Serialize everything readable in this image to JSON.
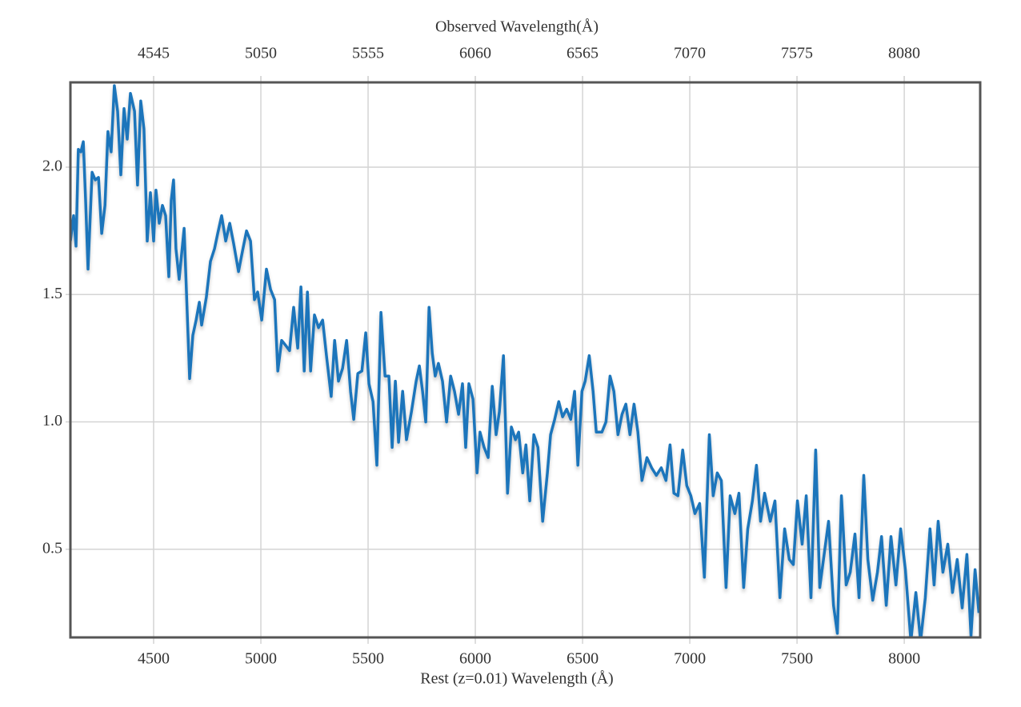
{
  "chart_data": {
    "type": "line",
    "x_label": "Rest (z=0.01) Wavelength (Å)",
    "x2_label": "Observed Wavelength(Å)",
    "xlim": [
      4112,
      8354
    ],
    "xticks": [
      4500,
      5000,
      5500,
      6000,
      6500,
      7000,
      7500,
      8000
    ],
    "x2lim": [
      4153,
      8438
    ],
    "x2ticks": [
      4545,
      5050,
      5555,
      6060,
      6565,
      7070,
      7575,
      8080
    ],
    "ylim": [
      0.154,
      2.333
    ],
    "yticks": [
      0.5,
      {
        "value": 1.0,
        "label": "1.0"
      },
      1.5,
      {
        "value": 2.0,
        "label": "2.0"
      }
    ],
    "grid": true,
    "x": [
      4112,
      4127,
      4138,
      4149,
      4161,
      4172,
      4183,
      4194,
      4213,
      4228,
      4243,
      4258,
      4273,
      4287,
      4302,
      4317,
      4332,
      4347,
      4362,
      4377,
      4392,
      4411,
      4425,
      4440,
      4455,
      4470,
      4485,
      4500,
      4511,
      4526,
      4541,
      4556,
      4571,
      4582,
      4593,
      4604,
      4619,
      4642,
      4668,
      4683,
      4698,
      4713,
      4724,
      4746,
      4765,
      4784,
      4799,
      4817,
      4836,
      4855,
      4873,
      4896,
      4914,
      4933,
      4952,
      4970,
      4985,
      5004,
      5026,
      5045,
      5064,
      5079,
      5097,
      5116,
      5134,
      5153,
      5172,
      5187,
      5202,
      5217,
      5232,
      5250,
      5269,
      5288,
      5306,
      5328,
      5344,
      5362,
      5381,
      5400,
      5418,
      5433,
      5452,
      5471,
      5489,
      5504,
      5523,
      5541,
      5560,
      5579,
      5597,
      5612,
      5627,
      5642,
      5661,
      5679,
      5702,
      5724,
      5739,
      5754,
      5769,
      5784,
      5799,
      5813,
      5828,
      5847,
      5866,
      5885,
      5903,
      5922,
      5940,
      5955,
      5970,
      5989,
      6008,
      6022,
      6041,
      6060,
      6079,
      6097,
      6112,
      6131,
      6150,
      6168,
      6187,
      6202,
      6221,
      6236,
      6254,
      6273,
      6292,
      6314,
      6336,
      6351,
      6370,
      6389,
      6407,
      6426,
      6445,
      6463,
      6478,
      6497,
      6512,
      6531,
      6549,
      6564,
      6590,
      6609,
      6628,
      6646,
      6665,
      6684,
      6702,
      6721,
      6740,
      6758,
      6777,
      6800,
      6822,
      6844,
      6867,
      6889,
      6908,
      6926,
      6945,
      6967,
      6986,
      7005,
      7024,
      7046,
      7068,
      7091,
      7109,
      7128,
      7147,
      7169,
      7188,
      7210,
      7229,
      7251,
      7270,
      7292,
      7311,
      7330,
      7349,
      7375,
      7397,
      7420,
      7442,
      7464,
      7483,
      7502,
      7524,
      7543,
      7565,
      7587,
      7606,
      7628,
      7647,
      7670,
      7688,
      7707,
      7729,
      7748,
      7770,
      7789,
      7811,
      7830,
      7853,
      7875,
      7894,
      7916,
      7938,
      7961,
      7983,
      8005,
      8031,
      8054,
      8076,
      8098,
      8120,
      8139,
      8158,
      8180,
      8203,
      8225,
      8247,
      8270,
      8292,
      8311,
      8330,
      8348
    ],
    "series": [
      {
        "color": "#1a75bb",
        "values": [
          1.71,
          1.81,
          1.69,
          2.07,
          2.06,
          2.1,
          1.87,
          1.6,
          1.98,
          1.95,
          1.96,
          1.74,
          1.85,
          2.14,
          2.06,
          2.32,
          2.22,
          1.97,
          2.23,
          2.11,
          2.29,
          2.22,
          1.93,
          2.26,
          2.15,
          1.71,
          1.9,
          1.71,
          1.91,
          1.78,
          1.85,
          1.81,
          1.57,
          1.87,
          1.95,
          1.68,
          1.56,
          1.76,
          1.17,
          1.34,
          1.4,
          1.47,
          1.38,
          1.49,
          1.63,
          1.68,
          1.74,
          1.81,
          1.71,
          1.78,
          1.7,
          1.59,
          1.67,
          1.75,
          1.71,
          1.48,
          1.51,
          1.4,
          1.6,
          1.52,
          1.48,
          1.2,
          1.32,
          1.3,
          1.28,
          1.45,
          1.29,
          1.53,
          1.2,
          1.51,
          1.2,
          1.42,
          1.37,
          1.4,
          1.26,
          1.1,
          1.32,
          1.16,
          1.21,
          1.32,
          1.12,
          1.01,
          1.19,
          1.2,
          1.35,
          1.15,
          1.08,
          0.83,
          1.43,
          1.18,
          1.18,
          0.9,
          1.16,
          0.92,
          1.12,
          0.93,
          1.04,
          1.16,
          1.22,
          1.12,
          1.0,
          1.45,
          1.27,
          1.18,
          1.23,
          1.16,
          1.0,
          1.18,
          1.12,
          1.03,
          1.15,
          0.9,
          1.15,
          1.09,
          0.8,
          0.96,
          0.9,
          0.86,
          1.14,
          0.95,
          1.04,
          1.26,
          0.72,
          0.98,
          0.93,
          0.96,
          0.8,
          0.91,
          0.69,
          0.95,
          0.9,
          0.61,
          0.8,
          0.95,
          1.01,
          1.08,
          1.02,
          1.05,
          1.01,
          1.12,
          0.83,
          1.12,
          1.16,
          1.26,
          1.12,
          0.96,
          0.96,
          1.0,
          1.18,
          1.12,
          0.95,
          1.03,
          1.07,
          0.95,
          1.07,
          0.96,
          0.77,
          0.86,
          0.82,
          0.79,
          0.82,
          0.77,
          0.91,
          0.72,
          0.71,
          0.89,
          0.75,
          0.71,
          0.64,
          0.68,
          0.39,
          0.95,
          0.71,
          0.8,
          0.77,
          0.35,
          0.71,
          0.64,
          0.72,
          0.35,
          0.58,
          0.69,
          0.83,
          0.61,
          0.72,
          0.61,
          0.69,
          0.31,
          0.58,
          0.46,
          0.44,
          0.69,
          0.52,
          0.71,
          0.31,
          0.89,
          0.35,
          0.49,
          0.61,
          0.28,
          0.17,
          0.71,
          0.36,
          0.41,
          0.56,
          0.31,
          0.79,
          0.46,
          0.3,
          0.41,
          0.55,
          0.28,
          0.55,
          0.36,
          0.58,
          0.42,
          0.14,
          0.33,
          0.14,
          0.31,
          0.58,
          0.36,
          0.61,
          0.41,
          0.52,
          0.33,
          0.46,
          0.27,
          0.48,
          0.16,
          0.42,
          0.25
        ]
      }
    ]
  }
}
